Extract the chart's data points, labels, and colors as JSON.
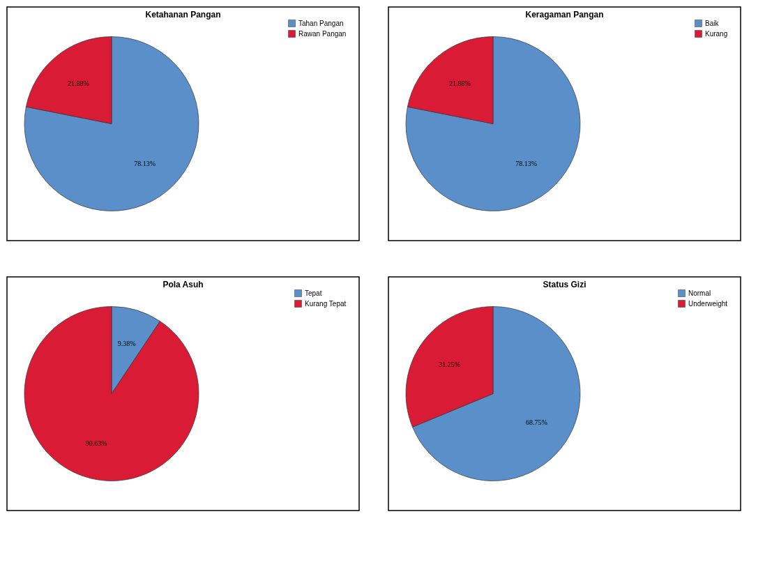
{
  "chart_data": [
    {
      "type": "pie",
      "title": "Ketahanan Pangan",
      "categories": [
        "Tahan Pangan",
        "Rawan Pangan"
      ],
      "values": [
        78.13,
        21.88
      ],
      "value_labels": [
        "78.13%",
        "21.88%"
      ],
      "colors": [
        "#5b8fc9",
        "#d91b35"
      ],
      "legend": "top right"
    },
    {
      "type": "pie",
      "title": "Keragaman Pangan",
      "categories": [
        "Baik",
        "Kurang"
      ],
      "values": [
        78.13,
        21.88
      ],
      "value_labels": [
        "78.13%",
        "21.88%"
      ],
      "colors": [
        "#5b8fc9",
        "#d91b35"
      ],
      "legend": "top right"
    },
    {
      "type": "pie",
      "title": "Pola Asuh",
      "categories": [
        "Tepat",
        "Kurang Tepat"
      ],
      "values": [
        9.38,
        90.63
      ],
      "value_labels": [
        "9.38%",
        "90.63%"
      ],
      "colors": [
        "#5b8fc9",
        "#d91b35"
      ],
      "legend": "top right"
    },
    {
      "type": "pie",
      "title": "Status Gizi",
      "categories": [
        "Normal",
        "Underweight"
      ],
      "values": [
        68.75,
        31.25
      ],
      "value_labels": [
        "68.75%",
        "31.25%"
      ],
      "colors": [
        "#5b8fc9",
        "#d91b35"
      ],
      "legend": "top right"
    }
  ]
}
